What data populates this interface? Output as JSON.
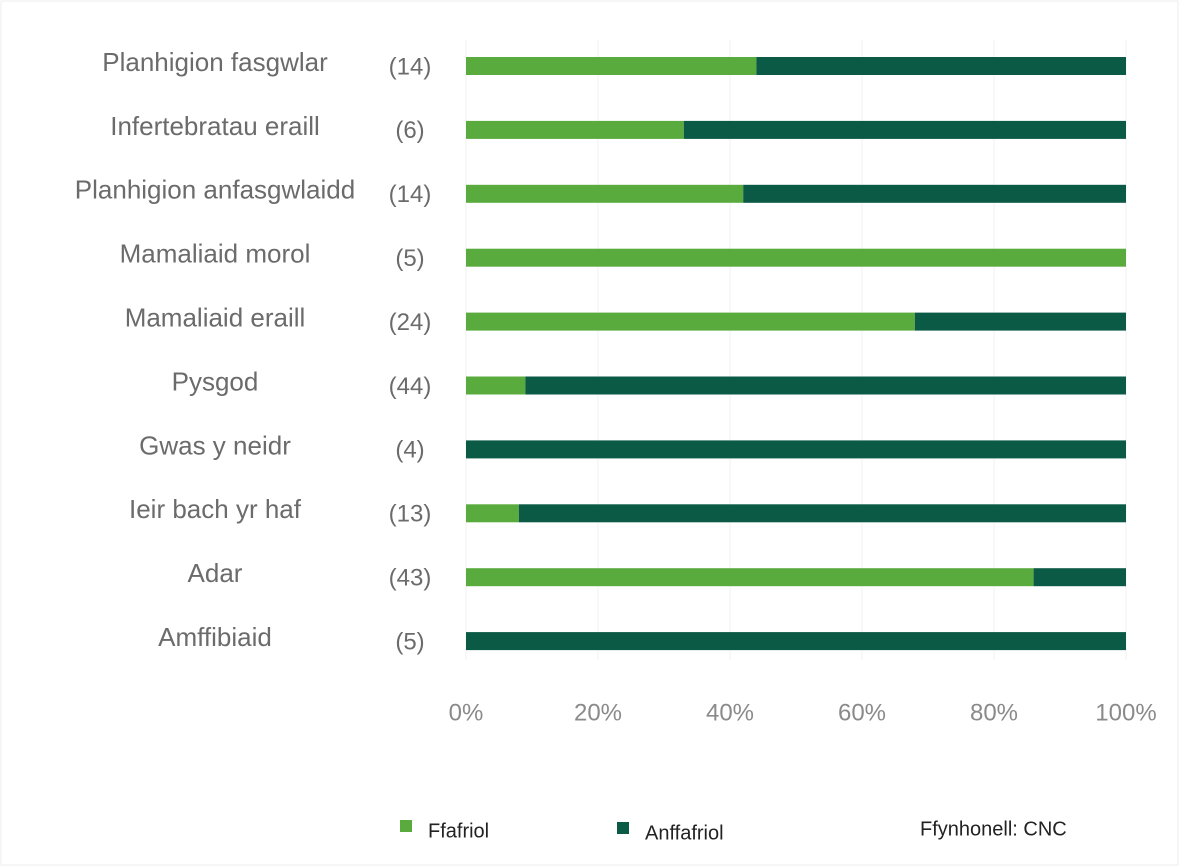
{
  "chart_data": {
    "type": "stacked_bar_horizontal",
    "categories": [
      "Planhigion fasgwlar",
      "Infertebratau eraill",
      "Planhigion anfasgwlaidd",
      "Mamaliaid morol",
      "Mamaliaid eraill",
      "Pysgod",
      "Gwas y neidr",
      "Ieir bach yr haf",
      "Adar",
      "Amffibiaid"
    ],
    "counts": [
      "(14)",
      "(6)",
      "(14)",
      "(5)",
      "(24)",
      "(44)",
      "(4)",
      "(13)",
      "(43)",
      "(5)"
    ],
    "series": [
      {
        "name": "Ffafriol",
        "color": "#5aab3e",
        "values": [
          44,
          33,
          42,
          100,
          68,
          9,
          0,
          8,
          86,
          0
        ]
      },
      {
        "name": "Anffafriol",
        "color": "#0b5a45",
        "values": [
          56,
          67,
          58,
          0,
          32,
          91,
          100,
          92,
          14,
          100
        ]
      }
    ],
    "xlim": [
      0,
      100
    ],
    "xticks": [
      {
        "value": 0,
        "label": "0%"
      },
      {
        "value": 20,
        "label": "20%"
      },
      {
        "value": 40,
        "label": "40%"
      },
      {
        "value": 60,
        "label": "60%"
      },
      {
        "value": 80,
        "label": "80%"
      },
      {
        "value": 100,
        "label": "100%"
      }
    ],
    "grid": true,
    "source": "Ffynhonell: CNC"
  }
}
